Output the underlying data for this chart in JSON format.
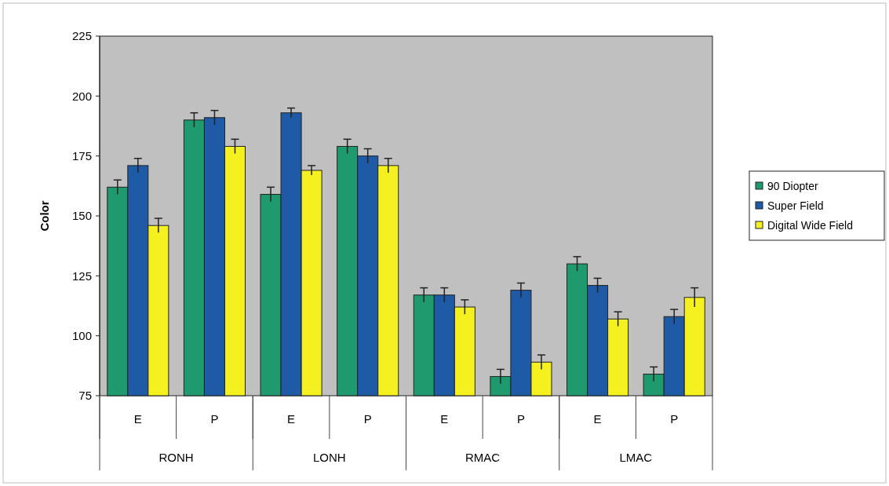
{
  "chart_data": {
    "type": "bar",
    "ylabel": "Color",
    "categories": [
      "E",
      "P",
      "E",
      "P",
      "E",
      "P",
      "E",
      "P"
    ],
    "annotations": [
      "RONH",
      "LONH",
      "RMAC",
      "LMAC"
    ],
    "series": [
      {
        "name": "90 Diopter",
        "color": "#1f9a6e",
        "values": [
          162,
          190,
          159,
          179,
          117,
          83,
          130,
          84
        ],
        "errors": [
          3,
          3,
          3,
          3,
          3,
          3,
          3,
          3
        ]
      },
      {
        "name": "Super Field",
        "color": "#1f5aa6",
        "values": [
          171,
          191,
          193,
          175,
          117,
          119,
          121,
          108
        ],
        "errors": [
          3,
          3,
          2,
          3,
          3,
          3,
          3,
          3
        ]
      },
      {
        "name": "Digital Wide Field",
        "color": "#f5f020",
        "values": [
          146,
          179,
          169,
          171,
          112,
          89,
          107,
          116
        ],
        "errors": [
          3,
          3,
          2,
          3,
          3,
          3,
          3,
          4
        ]
      }
    ],
    "ylim": [
      75,
      225
    ],
    "yticks": [
      75,
      100,
      125,
      150,
      175,
      200,
      225
    ],
    "grid": false,
    "legend": "right"
  }
}
